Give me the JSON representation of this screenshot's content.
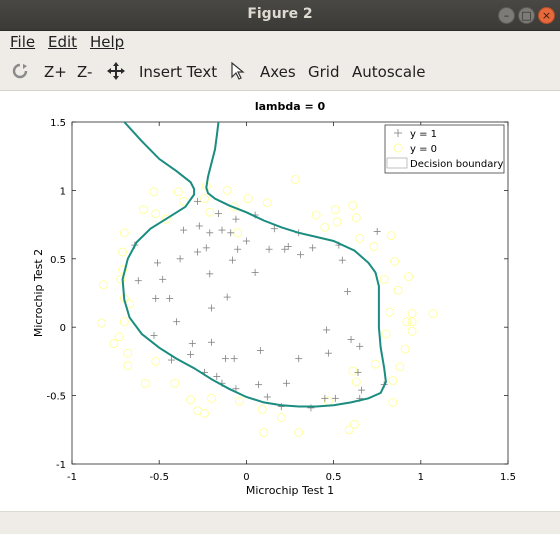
{
  "window": {
    "title": "Figure 2"
  },
  "menu": {
    "file": "File",
    "edit": "Edit",
    "help": "Help"
  },
  "toolbar": {
    "zoom_in": "Z+",
    "zoom_out": "Z-",
    "insert_text": "Insert Text",
    "axes": "Axes",
    "grid": "Grid",
    "autoscale": "Autoscale"
  },
  "colors": {
    "accepted": "#808080",
    "rejected": "#ffff99",
    "boundary": "#1a8c80"
  },
  "chart_data": {
    "type": "scatter",
    "title": "lambda = 0",
    "xlabel": "Microchip Test 1",
    "ylabel": "Microchip Test 2",
    "xlim": [
      -1,
      1.5
    ],
    "ylim": [
      -1,
      1.5
    ],
    "xticks": [
      "-1",
      "-0.5",
      "0",
      "0.5",
      "1",
      "1.5"
    ],
    "yticks": [
      "-1",
      "-0.5",
      "0",
      "0.5",
      "1",
      "1.5"
    ],
    "legend_position": "top-right",
    "legend": [
      "y = 1",
      "y = 0",
      "Decision boundary"
    ],
    "series": [
      {
        "name": "y = 1",
        "marker": "plus",
        "points": [
          [
            -0.09,
            0.69
          ],
          [
            -0.21,
            0.69
          ],
          [
            -0.38,
            0.5
          ],
          [
            -0.51,
            0.47
          ],
          [
            -0.52,
            0.21
          ],
          [
            -0.4,
            0.04
          ],
          [
            -0.31,
            -0.12
          ],
          [
            -0.28,
            0.55
          ],
          [
            -0.48,
            0.35
          ],
          [
            -0.44,
            0.21
          ],
          [
            -0.2,
            0.14
          ],
          [
            -0.2,
            -0.11
          ],
          [
            0.05,
            0.4
          ],
          [
            0.0,
            0.63
          ],
          [
            0.05,
            0.82
          ],
          [
            -0.06,
            0.79
          ],
          [
            -0.23,
            0.58
          ],
          [
            -0.21,
            0.39
          ],
          [
            -0.08,
            0.49
          ],
          [
            -0.05,
            0.57
          ],
          [
            -0.28,
            0.92
          ],
          [
            -0.36,
            0.71
          ],
          [
            -0.64,
            0.6
          ],
          [
            -0.62,
            0.34
          ],
          [
            -0.53,
            -0.06
          ],
          [
            -0.43,
            -0.24
          ],
          [
            -0.32,
            -0.2
          ],
          [
            -0.17,
            -0.36
          ],
          [
            -0.24,
            -0.33
          ],
          [
            -0.14,
            -0.41
          ],
          [
            0.07,
            -0.42
          ],
          [
            0.12,
            -0.51
          ],
          [
            0.23,
            -0.41
          ],
          [
            0.37,
            -0.59
          ],
          [
            0.51,
            -0.52
          ],
          [
            0.65,
            -0.52
          ],
          [
            0.64,
            -0.33
          ],
          [
            0.65,
            -0.14
          ],
          [
            0.58,
            0.26
          ],
          [
            0.55,
            0.49
          ],
          [
            0.38,
            0.58
          ],
          [
            0.24,
            0.59
          ],
          [
            0.3,
            0.69
          ],
          [
            0.31,
            0.53
          ],
          [
            0.13,
            0.57
          ],
          [
            0.08,
            -0.17
          ],
          [
            -0.12,
            -0.23
          ],
          [
            -0.07,
            -0.23
          ],
          [
            0.3,
            -0.23
          ],
          [
            0.45,
            -0.52
          ],
          [
            0.46,
            -0.02
          ],
          [
            0.47,
            -0.19
          ],
          [
            0.6,
            -0.09
          ],
          [
            -0.16,
            0.83
          ],
          [
            -0.14,
            0.71
          ],
          [
            -0.27,
            0.74
          ],
          [
            0.16,
            0.72
          ],
          [
            0.22,
            0.57
          ],
          [
            -0.11,
            0.22
          ],
          [
            -0.06,
            -0.45
          ],
          [
            0.2,
            -0.58
          ],
          [
            0.66,
            -0.46
          ],
          [
            0.79,
            -0.42
          ],
          [
            0.53,
            0.6
          ],
          [
            0.75,
            0.7
          ]
        ]
      },
      {
        "name": "y = 0",
        "marker": "circle",
        "points": [
          [
            -0.53,
            0.99
          ],
          [
            -0.59,
            0.86
          ],
          [
            -0.52,
            0.83
          ],
          [
            -0.7,
            0.69
          ],
          [
            -0.71,
            0.55
          ],
          [
            -0.82,
            0.31
          ],
          [
            -0.72,
            0.35
          ],
          [
            -0.67,
            0.17
          ],
          [
            -0.7,
            0.04
          ],
          [
            -0.73,
            -0.07
          ],
          [
            -0.68,
            -0.19
          ],
          [
            -0.68,
            -0.28
          ],
          [
            -0.58,
            -0.41
          ],
          [
            -0.41,
            -0.41
          ],
          [
            -0.28,
            -0.61
          ],
          [
            -0.24,
            -0.63
          ],
          [
            -0.04,
            -0.54
          ],
          [
            0.1,
            -0.77
          ],
          [
            0.3,
            -0.77
          ],
          [
            0.59,
            -0.75
          ],
          [
            0.62,
            -0.71
          ],
          [
            0.84,
            -0.39
          ],
          [
            0.84,
            -0.55
          ],
          [
            0.88,
            -0.29
          ],
          [
            0.91,
            -0.16
          ],
          [
            0.95,
            -0.03
          ],
          [
            0.92,
            0.04
          ],
          [
            0.95,
            0.1
          ],
          [
            0.95,
            0.04
          ],
          [
            1.07,
            0.1
          ],
          [
            0.87,
            0.27
          ],
          [
            0.93,
            0.37
          ],
          [
            0.85,
            0.48
          ],
          [
            0.83,
            0.67
          ],
          [
            0.73,
            0.59
          ],
          [
            0.63,
            0.8
          ],
          [
            0.61,
            0.89
          ],
          [
            0.51,
            0.86
          ],
          [
            0.4,
            0.82
          ],
          [
            0.28,
            1.08
          ],
          [
            0.12,
            0.91
          ],
          [
            0.01,
            0.94
          ],
          [
            -0.07,
            0.88
          ],
          [
            -0.21,
            0.84
          ],
          [
            -0.23,
            1.03
          ],
          [
            -0.36,
            0.92
          ],
          [
            -0.46,
            0.79
          ],
          [
            -0.39,
            0.99
          ],
          [
            -0.24,
            0.94
          ],
          [
            -0.71,
            0.42
          ],
          [
            -0.7,
            0.21
          ],
          [
            -0.83,
            0.03
          ],
          [
            -0.76,
            -0.12
          ],
          [
            -0.52,
            -0.25
          ],
          [
            -0.32,
            -0.53
          ],
          [
            -0.2,
            -0.52
          ],
          [
            0.09,
            -0.6
          ],
          [
            0.2,
            -0.66
          ],
          [
            0.47,
            -0.54
          ],
          [
            0.63,
            -0.4
          ],
          [
            0.74,
            -0.27
          ],
          [
            0.8,
            -0.05
          ],
          [
            0.82,
            0.11
          ],
          [
            0.79,
            0.35
          ],
          [
            0.65,
            0.65
          ],
          [
            0.45,
            0.73
          ],
          [
            0.52,
            0.77
          ],
          [
            -0.11,
            1.0
          ],
          [
            0.61,
            -0.32
          ],
          [
            -0.05,
            0.69
          ]
        ]
      },
      {
        "name": "Decision boundary",
        "type": "line",
        "points": [
          [
            -0.7,
            1.5
          ],
          [
            -0.6,
            1.36
          ],
          [
            -0.5,
            1.23
          ],
          [
            -0.4,
            1.14
          ],
          [
            -0.32,
            1.06
          ],
          [
            -0.3,
            1.01
          ],
          [
            -0.3,
            0.97
          ],
          [
            -0.35,
            0.88
          ],
          [
            -0.45,
            0.8
          ],
          [
            -0.55,
            0.72
          ],
          [
            -0.63,
            0.62
          ],
          [
            -0.68,
            0.5
          ],
          [
            -0.71,
            0.35
          ],
          [
            -0.7,
            0.2
          ],
          [
            -0.67,
            0.07
          ],
          [
            -0.6,
            -0.05
          ],
          [
            -0.5,
            -0.15
          ],
          [
            -0.4,
            -0.23
          ],
          [
            -0.3,
            -0.3
          ],
          [
            -0.2,
            -0.38
          ],
          [
            -0.1,
            -0.45
          ],
          [
            0.0,
            -0.51
          ],
          [
            0.1,
            -0.55
          ],
          [
            0.2,
            -0.57
          ],
          [
            0.3,
            -0.58
          ],
          [
            0.4,
            -0.58
          ],
          [
            0.5,
            -0.57
          ],
          [
            0.6,
            -0.55
          ],
          [
            0.7,
            -0.52
          ],
          [
            0.77,
            -0.48
          ],
          [
            0.8,
            -0.4
          ],
          [
            0.79,
            -0.3
          ],
          [
            0.77,
            -0.15
          ],
          [
            0.76,
            0.0
          ],
          [
            0.76,
            0.15
          ],
          [
            0.76,
            0.3
          ],
          [
            0.74,
            0.4
          ],
          [
            0.7,
            0.47
          ],
          [
            0.62,
            0.56
          ],
          [
            0.5,
            0.63
          ],
          [
            0.4,
            0.66
          ],
          [
            0.3,
            0.69
          ],
          [
            0.2,
            0.73
          ],
          [
            0.1,
            0.78
          ],
          [
            0.0,
            0.84
          ],
          [
            -0.1,
            0.89
          ],
          [
            -0.18,
            0.94
          ],
          [
            -0.22,
            0.98
          ],
          [
            -0.23,
            1.02
          ],
          [
            -0.22,
            1.1
          ],
          [
            -0.2,
            1.2
          ],
          [
            -0.18,
            1.3
          ],
          [
            -0.17,
            1.4
          ],
          [
            -0.16,
            1.5
          ]
        ]
      }
    ]
  }
}
